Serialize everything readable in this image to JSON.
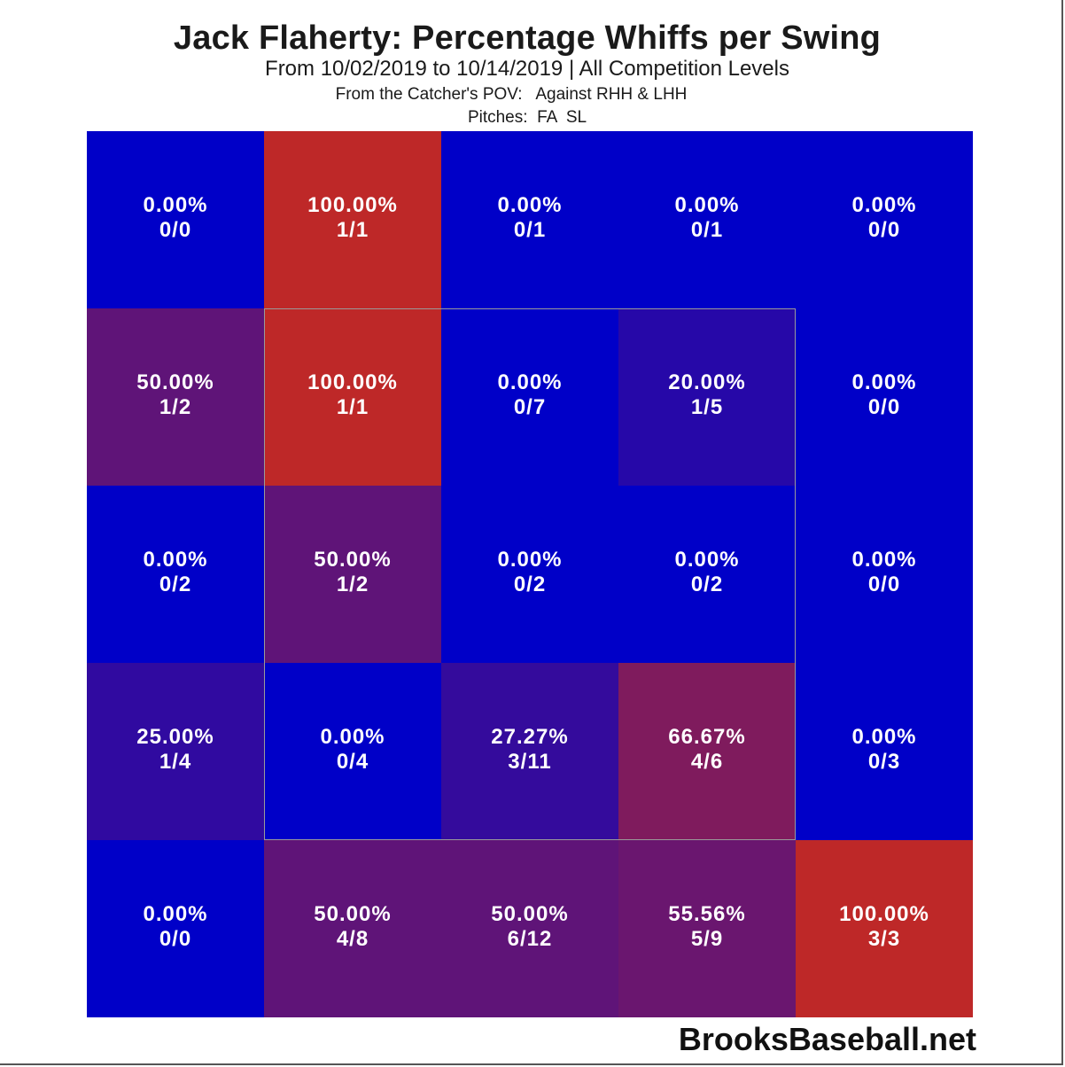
{
  "title": "Jack Flaherty: Percentage Whiffs per Swing",
  "subtitle": "From 10/02/2019 to 10/14/2019 | All Competition Levels",
  "pov_label": "From the Catcher's POV:   Against RHH & LHH",
  "pitches_label": "Pitches:  FA  SL",
  "watermark": "BrooksBaseball.net",
  "colors": {
    "low": "#0000c8",
    "high": "#be2828"
  },
  "chart_data": {
    "type": "heatmap",
    "title": "Jack Flaherty: Percentage Whiffs per Swing",
    "rows": 5,
    "cols": 5,
    "strike_zone": "inner 3x3 cells",
    "cells": [
      [
        {
          "pct": "0.00%",
          "count": "0/0",
          "value": 0
        },
        {
          "pct": "100.00%",
          "count": "1/1",
          "value": 100
        },
        {
          "pct": "0.00%",
          "count": "0/1",
          "value": 0
        },
        {
          "pct": "0.00%",
          "count": "0/1",
          "value": 0
        },
        {
          "pct": "0.00%",
          "count": "0/0",
          "value": 0
        }
      ],
      [
        {
          "pct": "50.00%",
          "count": "1/2",
          "value": 50
        },
        {
          "pct": "100.00%",
          "count": "1/1",
          "value": 100
        },
        {
          "pct": "0.00%",
          "count": "0/7",
          "value": 0
        },
        {
          "pct": "20.00%",
          "count": "1/5",
          "value": 20
        },
        {
          "pct": "0.00%",
          "count": "0/0",
          "value": 0
        }
      ],
      [
        {
          "pct": "0.00%",
          "count": "0/2",
          "value": 0
        },
        {
          "pct": "50.00%",
          "count": "1/2",
          "value": 50
        },
        {
          "pct": "0.00%",
          "count": "0/2",
          "value": 0
        },
        {
          "pct": "0.00%",
          "count": "0/2",
          "value": 0
        },
        {
          "pct": "0.00%",
          "count": "0/0",
          "value": 0
        }
      ],
      [
        {
          "pct": "25.00%",
          "count": "1/4",
          "value": 25
        },
        {
          "pct": "0.00%",
          "count": "0/4",
          "value": 0
        },
        {
          "pct": "27.27%",
          "count": "3/11",
          "value": 27.27
        },
        {
          "pct": "66.67%",
          "count": "4/6",
          "value": 66.67
        },
        {
          "pct": "0.00%",
          "count": "0/3",
          "value": 0
        }
      ],
      [
        {
          "pct": "0.00%",
          "count": "0/0",
          "value": 0
        },
        {
          "pct": "50.00%",
          "count": "4/8",
          "value": 50
        },
        {
          "pct": "50.00%",
          "count": "6/12",
          "value": 50
        },
        {
          "pct": "55.56%",
          "count": "5/9",
          "value": 55.56
        },
        {
          "pct": "100.00%",
          "count": "3/3",
          "value": 100
        }
      ]
    ]
  }
}
